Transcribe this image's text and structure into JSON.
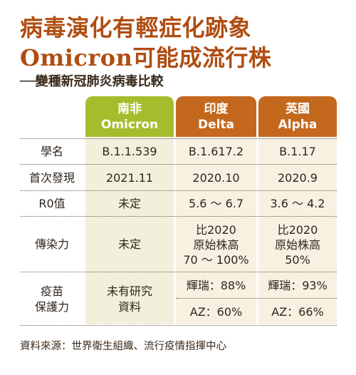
{
  "title_line1": "病毒演化有輕症化跡象",
  "title_line2": "Omicron可能成流行株",
  "subtitle": "──變種新冠肺炎病毒比較",
  "columns": [
    {
      "line1": "南非",
      "line2": "Omicron"
    },
    {
      "line1": "印度",
      "line2": "Delta"
    },
    {
      "line1": "英國",
      "line2": "Alpha"
    }
  ],
  "rows": {
    "name": {
      "label": "學名",
      "omicron": "B.1.1.539",
      "delta": "B.1.617.2",
      "alpha": "B.1.17"
    },
    "first": {
      "label": "首次發現",
      "omicron": "2021.11",
      "delta": "2020.10",
      "alpha": "2020.9"
    },
    "r0": {
      "label": "R0值",
      "omicron": "未定",
      "delta": "5.6 ～ 6.7",
      "alpha": "3.6 ～ 4.2"
    },
    "infect": {
      "label": "傳染力",
      "omicron": "未定",
      "delta": [
        "比2020",
        "原始株高",
        "70 ～ 100%"
      ],
      "alpha": [
        "比2020",
        "原始株高",
        "50%"
      ]
    },
    "vaccine": {
      "label": [
        "疫苗",
        "保護力"
      ],
      "omicron": [
        "未有研究",
        "資料"
      ],
      "delta_pfizer": "輝瑞：88%",
      "delta_az": "AZ：60%",
      "alpha_pfizer": "輝瑞：93%",
      "alpha_az": "AZ：66%"
    }
  },
  "source": "資料來源：世界衛生組織、流行疫情指揮中心",
  "colors": {
    "title": "#b04d12",
    "omicron_header": "#a5bd2d",
    "other_header": "#c4681e",
    "cell_bg": "#f8f1e2"
  }
}
